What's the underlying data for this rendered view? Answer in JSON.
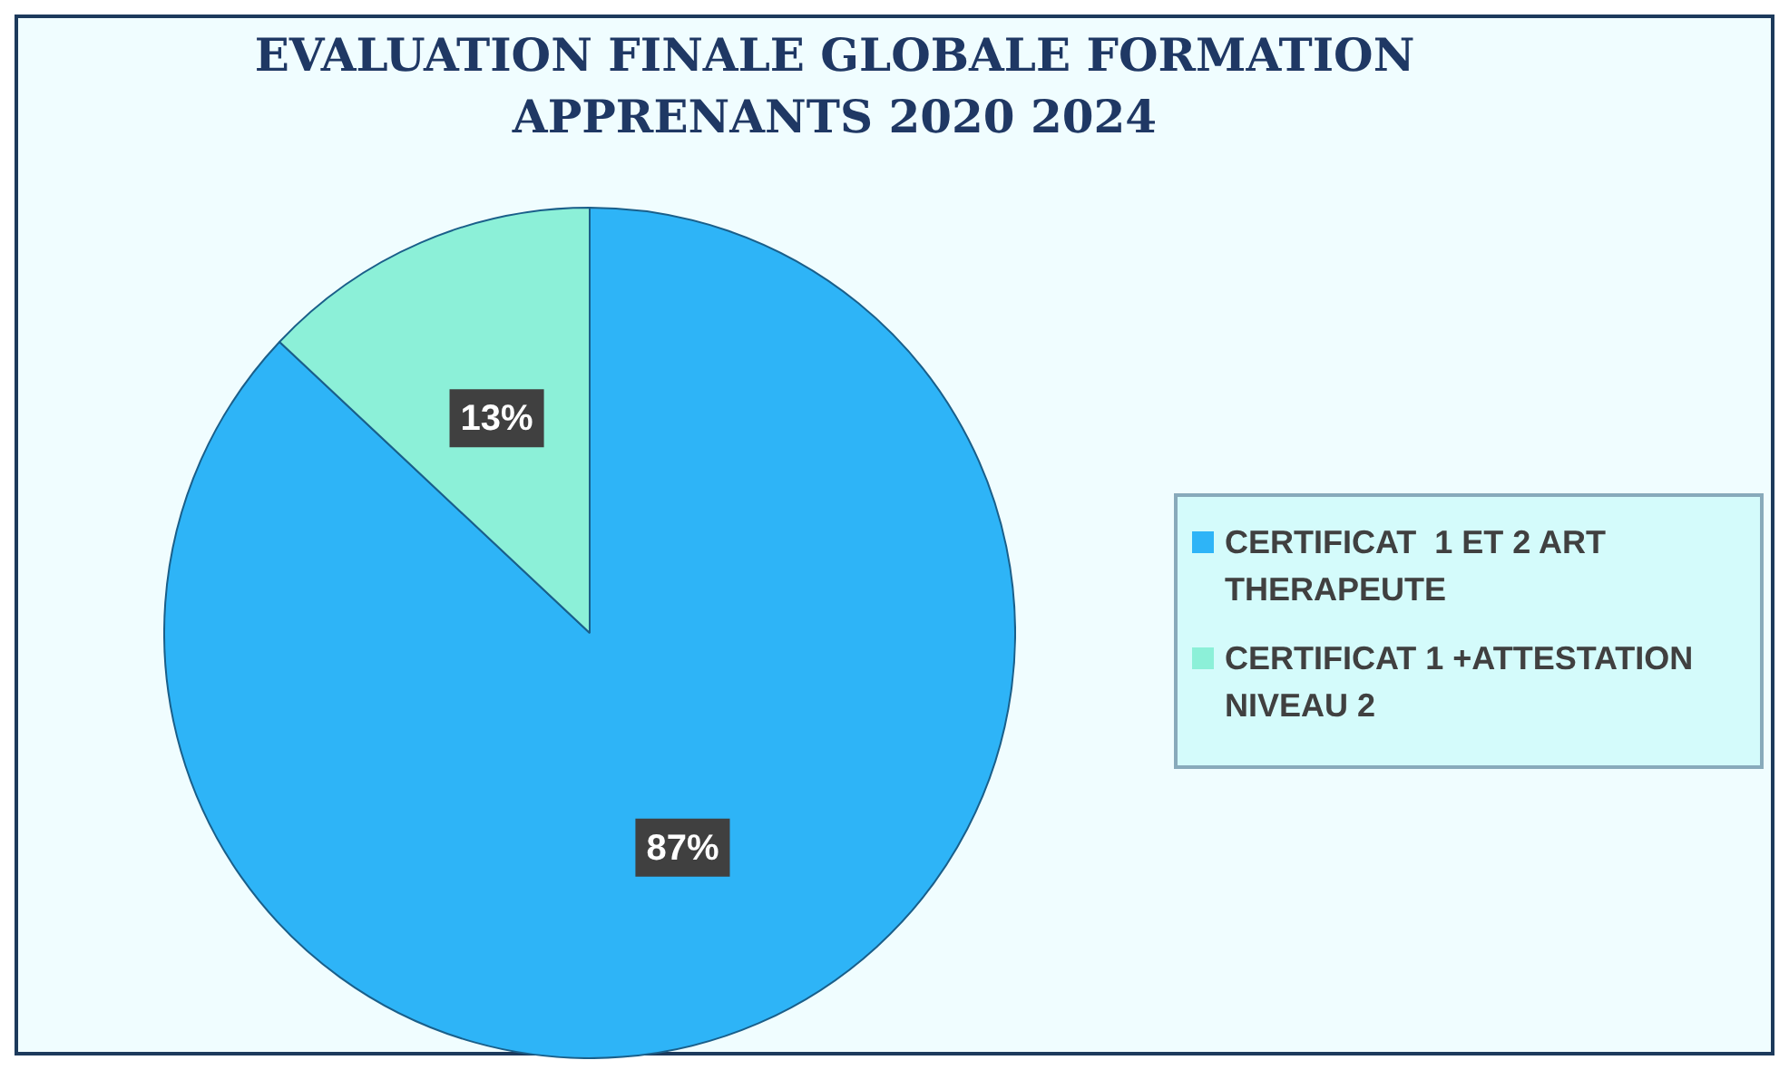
{
  "chart_data": {
    "type": "pie",
    "title": "EVALUATION FINALE GLOBALE FORMATION APPRENANTS 2020 2024",
    "categories": [
      "CERTIFICAT  1 ET 2 ART THERAPEUTE",
      "CERTIFICAT 1 +ATTESTATION NIVEAU 2"
    ],
    "values": [
      87,
      13
    ],
    "colors": [
      "#2eb4f7",
      "#8cf0d8"
    ],
    "value_labels": [
      "87%",
      "13%"
    ],
    "legend": "right"
  }
}
